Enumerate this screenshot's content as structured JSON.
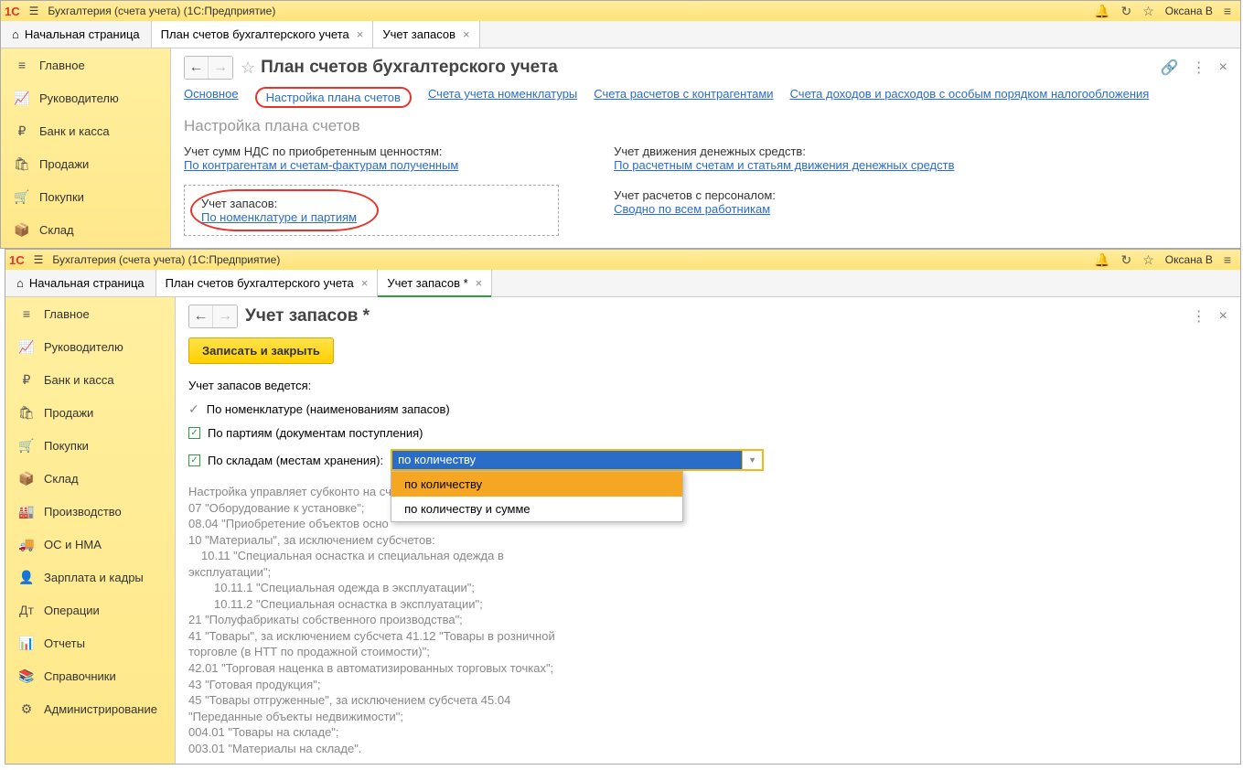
{
  "app": {
    "logo_text": "1C",
    "title": "Бухгалтерия (счета учета)  (1С:Предприятие)",
    "user": "Оксана В"
  },
  "colors": {
    "accent": "#e8332a",
    "link": "#2a6dc9",
    "yellow_bar": "#ffe377",
    "sidebar": "#ffe88a",
    "green": "#2e9c3f",
    "dd_border": "#f3b71a",
    "dd_sel": "#f5a623"
  },
  "tabs": {
    "home": "Начальная страница",
    "t1": "План счетов бухгалтерского учета",
    "t2": "Учет запасов",
    "t2_mod": "Учет запасов *"
  },
  "sidebar": {
    "items": [
      {
        "icon": "≡",
        "label": "Главное"
      },
      {
        "icon": "📈",
        "label": "Руководителю"
      },
      {
        "icon": "₽",
        "label": "Банк и касса"
      },
      {
        "icon": "🛍",
        "label": "Продажи"
      },
      {
        "icon": "🛒",
        "label": "Покупки"
      },
      {
        "icon": "📦",
        "label": "Склад"
      },
      {
        "icon": "🏭",
        "label": "Производство"
      },
      {
        "icon": "🚚",
        "label": "ОС и НМА"
      },
      {
        "icon": "👤",
        "label": "Зарплата и кадры"
      },
      {
        "icon": "Дт",
        "label": "Операции"
      },
      {
        "icon": "📊",
        "label": "Отчеты"
      },
      {
        "icon": "📚",
        "label": "Справочники"
      },
      {
        "icon": "⚙",
        "label": "Администрирование"
      }
    ]
  },
  "win1": {
    "page_title": "План счетов бухгалтерского учета",
    "subnav": {
      "n1": "Основное",
      "n2": "Настройка плана счетов",
      "n3": "Счета учета номенклатуры",
      "n4": "Счета расчетов с контрагентами",
      "n5": "Счета доходов и расходов с особым порядком налогообложения"
    },
    "section_title": "Настройка плана счетов",
    "col1": {
      "l1": "Учет сумм НДС по приобретенным ценностям:",
      "v1": "По контрагентам и счетам-фактурам полученным",
      "l2": "Учет запасов:",
      "v2": "По номенклатуре и партиям"
    },
    "col2": {
      "l1": "Учет движения денежных средств:",
      "v1": "По расчетным счетам и статьям движения денежных средств",
      "l2": "Учет расчетов с персоналом:",
      "v2": "Сводно по всем работникам"
    }
  },
  "win2": {
    "page_title": "Учет запасов *",
    "save_btn": "Записать и закрыть",
    "lead": "Учет запасов ведется:",
    "opt1": "По номенклатуре (наименованиям запасов)",
    "opt2": "По партиям (документам поступления)",
    "opt3": "По складам (местам хранения):",
    "dd_value": "по количеству",
    "dd_items": {
      "i1": "по количеству",
      "i2": "по количеству и сумме"
    },
    "info": {
      "l0": "Настройка управляет субконто на сч",
      "l1": "07 \"Оборудование к установке\";",
      "l2": "08.04 \"Приобретение объектов осно",
      "l3": "10 \"Материалы\", за исключением субсчетов:",
      "l4": "10.11 \"Специальная оснастка и специальная одежда в",
      "l4b": "эксплуатации\";",
      "l5": "10.11.1 \"Специальная одежда в эксплуатации\";",
      "l6": "10.11.2 \"Специальная оснастка в эксплуатации\";",
      "l7": "21 \"Полуфабрикаты собственного производства\";",
      "l8": "41 \"Товары\", за исключением субсчета 41.12 \"Товары в розничной",
      "l8b": "торговле (в НТТ по продажной стоимости)\";",
      "l9": "42.01 \"Торговая наценка в автоматизированных торговых точках\";",
      "l10": "43 \"Готовая продукция\";",
      "l11": "45 \"Товары отгруженные\", за исключением субсчета 45.04",
      "l11b": "\"Переданные объекты недвижимости\";",
      "l12": "004.01 \"Товары на складе\";",
      "l13": "003.01 \"Материалы на складе\"."
    }
  }
}
